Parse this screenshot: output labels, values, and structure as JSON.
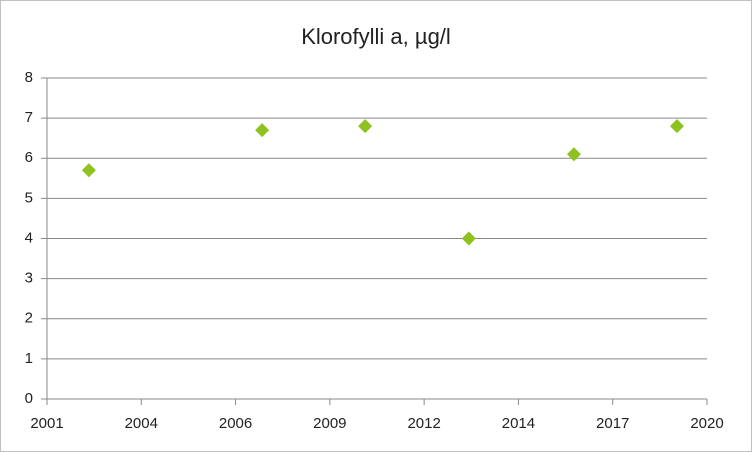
{
  "chart_data": {
    "type": "scatter",
    "title": "Klorofylli a, µg/l",
    "x": [
      2002.5,
      2007.46,
      2010.41,
      2013.38,
      2016.39,
      2019.34
    ],
    "values": [
      5.7,
      6.7,
      6.8,
      4.0,
      6.1,
      6.8
    ],
    "color": "#8dc21f",
    "xlim": [
      2001.3,
      2020.2
    ],
    "xticks": [
      {
        "value": 2001.3,
        "label": "2001"
      },
      {
        "value": 2004.0,
        "label": "2004"
      },
      {
        "value": 2006.7,
        "label": "2006"
      },
      {
        "value": 2009.4,
        "label": "2009"
      },
      {
        "value": 2012.1,
        "label": "2012"
      },
      {
        "value": 2014.8,
        "label": "2014"
      },
      {
        "value": 2017.5,
        "label": "2017"
      },
      {
        "value": 2020.2,
        "label": "2020"
      }
    ],
    "ylim": [
      0,
      8
    ],
    "yticks": [
      0,
      1,
      2,
      3,
      4,
      5,
      6,
      7,
      8
    ],
    "grid": true
  }
}
